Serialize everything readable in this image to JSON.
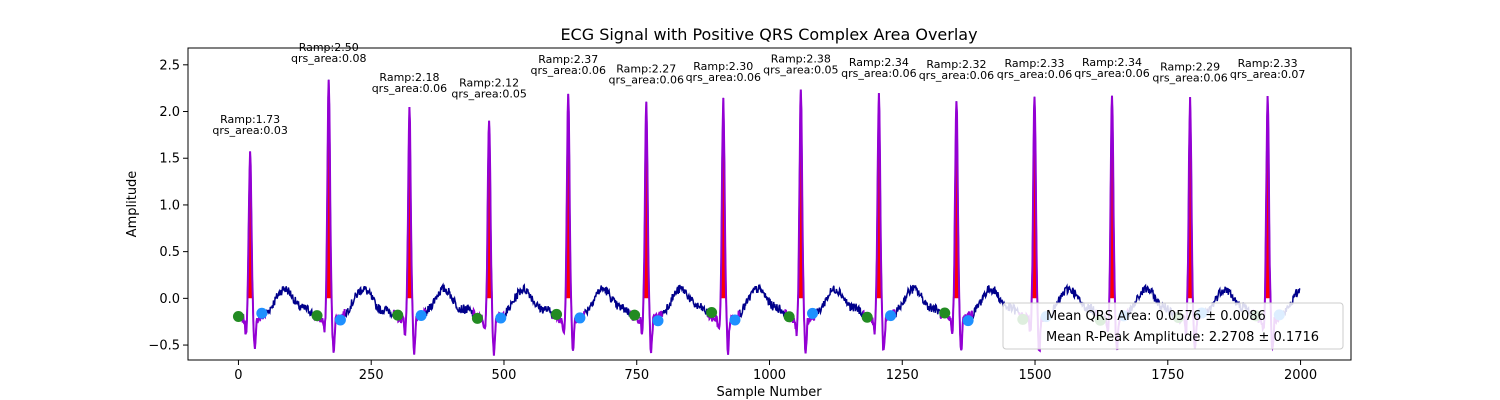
{
  "chart_data": {
    "type": "line",
    "title": "ECG Signal with Positive QRS Complex Area Overlay",
    "xlabel": "Sample Number",
    "ylabel": "Amplitude",
    "xlim": [
      -95,
      2095
    ],
    "ylim": [
      -0.66,
      2.68
    ],
    "xticks": [
      0,
      250,
      500,
      750,
      1000,
      1250,
      1500,
      1750,
      2000
    ],
    "yticks": [
      -0.5,
      0.0,
      0.5,
      1.0,
      1.5,
      2.0,
      2.5
    ],
    "xtick_labels": [
      "0",
      "250",
      "500",
      "750",
      "1000",
      "1250",
      "1500",
      "1750",
      "2000"
    ],
    "ytick_labels": [
      "−0.5",
      "0.0",
      "0.5",
      "1.0",
      "1.5",
      "2.0",
      "2.5"
    ],
    "grid": false,
    "colors": {
      "signal": "#00008b",
      "qrs_segment": "#9400d3",
      "area_fill": "#ff0000",
      "marker_onset": "#228b22",
      "marker_offset": "#1e90ff"
    },
    "beats": [
      {
        "r_peak": 22,
        "r_amp": 1.73,
        "qrs_area": 0.03,
        "ramp_label": "Ramp:1.73",
        "area_label": "qrs_area:0.03"
      },
      {
        "r_peak": 170,
        "r_amp": 2.5,
        "qrs_area": 0.08,
        "ramp_label": "Ramp:2.50",
        "area_label": "qrs_area:0.08"
      },
      {
        "r_peak": 322,
        "r_amp": 2.18,
        "qrs_area": 0.06,
        "ramp_label": "Ramp:2.18",
        "area_label": "qrs_area:0.06"
      },
      {
        "r_peak": 472,
        "r_amp": 2.12,
        "qrs_area": 0.05,
        "ramp_label": "Ramp:2.12",
        "area_label": "qrs_area:0.05"
      },
      {
        "r_peak": 621,
        "r_amp": 2.37,
        "qrs_area": 0.06,
        "ramp_label": "Ramp:2.37",
        "area_label": "qrs_area:0.06"
      },
      {
        "r_peak": 768,
        "r_amp": 2.27,
        "qrs_area": 0.06,
        "ramp_label": "Ramp:2.27",
        "area_label": "qrs_area:0.06"
      },
      {
        "r_peak": 913,
        "r_amp": 2.3,
        "qrs_area": 0.06,
        "ramp_label": "Ramp:2.30",
        "area_label": "qrs_area:0.06"
      },
      {
        "r_peak": 1059,
        "r_amp": 2.38,
        "qrs_area": 0.05,
        "ramp_label": "Ramp:2.38",
        "area_label": "qrs_area:0.05"
      },
      {
        "r_peak": 1206,
        "r_amp": 2.34,
        "qrs_area": 0.06,
        "ramp_label": "Ramp:2.34",
        "area_label": "qrs_area:0.06"
      },
      {
        "r_peak": 1352,
        "r_amp": 2.32,
        "qrs_area": 0.06,
        "ramp_label": "Ramp:2.32",
        "area_label": "qrs_area:0.06"
      },
      {
        "r_peak": 1499,
        "r_amp": 2.33,
        "qrs_area": 0.06,
        "ramp_label": "Ramp:2.33",
        "area_label": "qrs_area:0.06"
      },
      {
        "r_peak": 1645,
        "r_amp": 2.34,
        "qrs_area": 0.06,
        "ramp_label": "Ramp:2.34",
        "area_label": "qrs_area:0.06"
      },
      {
        "r_peak": 1792,
        "r_amp": 2.29,
        "qrs_area": 0.06,
        "ramp_label": "Ramp:2.29",
        "area_label": "qrs_area:0.06"
      },
      {
        "r_peak": 1938,
        "r_amp": 2.33,
        "qrs_area": 0.07,
        "ramp_label": "Ramp:2.33",
        "area_label": "qrs_area:0.07"
      }
    ],
    "legend": {
      "placement": "lower-right",
      "entries": [
        "Mean QRS Area: 0.0576 ± 0.0086",
        "Mean R-Peak Amplitude: 2.2708 ± 0.1716"
      ]
    }
  }
}
